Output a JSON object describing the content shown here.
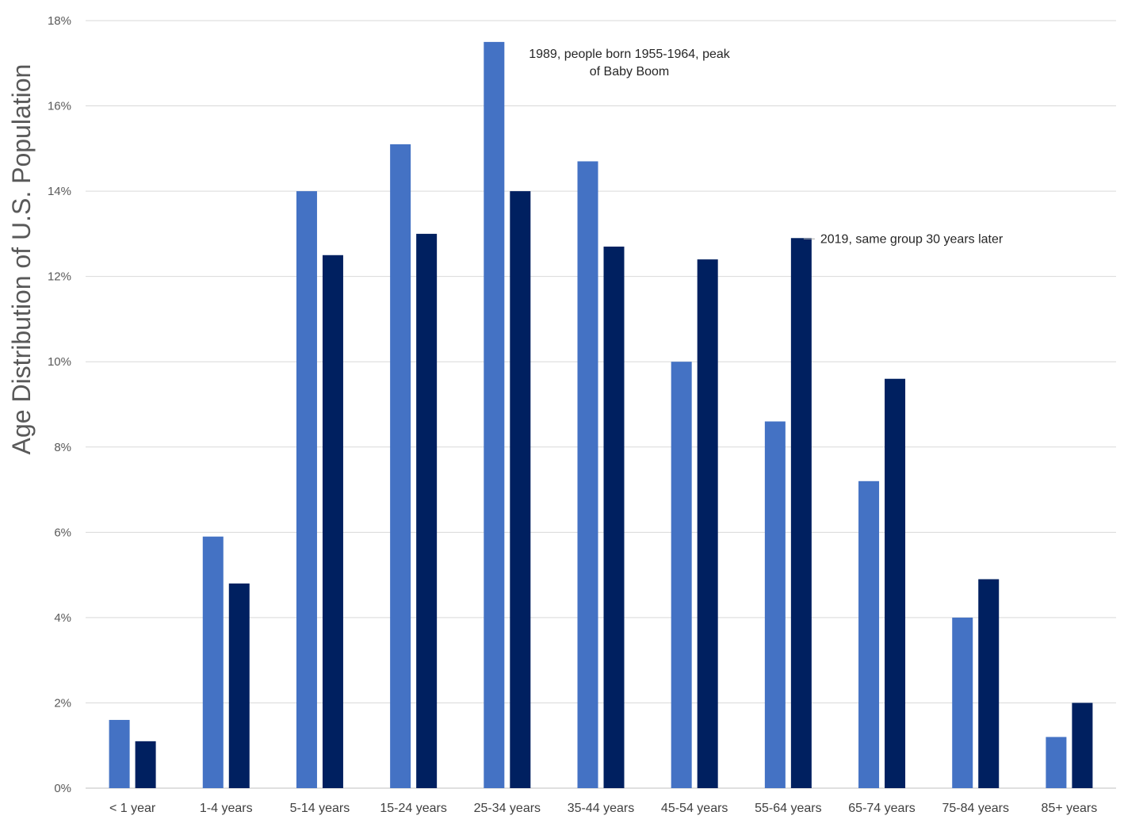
{
  "chart_data": {
    "type": "bar",
    "ylabel": "Age Distribution of U.S. Population",
    "xlabel": "",
    "ylim": [
      0,
      18
    ],
    "y_ticks": [
      0,
      2,
      4,
      6,
      8,
      10,
      12,
      14,
      16,
      18
    ],
    "y_tick_labels": [
      "0%",
      "2%",
      "4%",
      "6%",
      "8%",
      "10%",
      "12%",
      "14%",
      "16%",
      "18%"
    ],
    "grid": true,
    "legend": "none",
    "categories": [
      "< 1 year",
      "1-4 years",
      "5-14 years",
      "15-24 years",
      "25-34 years",
      "35-44 years",
      "45-54 years",
      "55-64 years",
      "65-74 years",
      "75-84 years",
      "85+ years"
    ],
    "series": [
      {
        "color": "#4472C4",
        "values": [
          1.6,
          5.9,
          14.0,
          15.1,
          17.5,
          14.7,
          10.0,
          8.6,
          7.2,
          4.0,
          1.2
        ]
      },
      {
        "color": "#002060",
        "values": [
          1.1,
          4.8,
          12.5,
          13.0,
          14.0,
          12.7,
          12.4,
          12.9,
          9.6,
          4.9,
          2.0
        ]
      }
    ],
    "annotations": [
      {
        "lines": [
          "1989, people born 1955-1964, peak",
          "of Baby Boom"
        ],
        "category": "25-34 years",
        "series": 0
      },
      {
        "lines": [
          "2019, same group 30 years later"
        ],
        "category": "55-64 years",
        "series": 1
      }
    ]
  }
}
